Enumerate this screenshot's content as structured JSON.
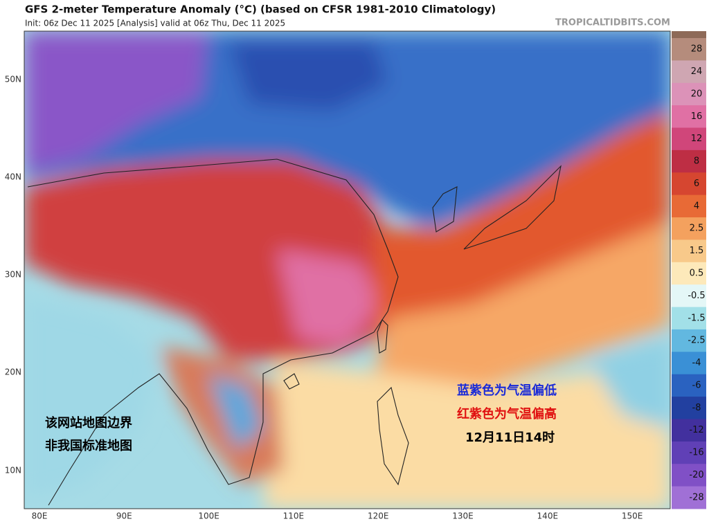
{
  "header": {
    "title": "GFS 2-meter Temperature Anomaly (°C) (based on CFSR 1981-2010 Climatology)",
    "subtitle": "Init: 06z Dec 11 2025   [Analysis]   valid at 06z Thu, Dec 11 2025",
    "site": "TROPICALTIDBITS.COM"
  },
  "map": {
    "lat_labels": [
      "50N",
      "40N",
      "30N",
      "20N",
      "10N"
    ],
    "lon_labels": [
      "80E",
      "90E",
      "100E",
      "110E",
      "120E",
      "130E",
      "140E",
      "150E"
    ]
  },
  "colorbar": [
    {
      "label": "28",
      "color": "#b58c7c"
    },
    {
      "label": "24",
      "color": "#cfa6b2"
    },
    {
      "label": "20",
      "color": "#dc92b8"
    },
    {
      "label": "16",
      "color": "#e070a4"
    },
    {
      "label": "12",
      "color": "#d0467a"
    },
    {
      "label": "8",
      "color": "#be2e44"
    },
    {
      "label": "6",
      "color": "#d64630"
    },
    {
      "label": "4",
      "color": "#e86a36"
    },
    {
      "label": "2.5",
      "color": "#f4a15e"
    },
    {
      "label": "1.5",
      "color": "#f8c98a"
    },
    {
      "label": "0.5",
      "color": "#fde9ba"
    },
    {
      "label": "-0.5",
      "color": "#e4f7f7"
    },
    {
      "label": "-1.5",
      "color": "#a2e0e8"
    },
    {
      "label": "-2.5",
      "color": "#62b8e0"
    },
    {
      "label": "-4",
      "color": "#3a90d6"
    },
    {
      "label": "-6",
      "color": "#2a62c0"
    },
    {
      "label": "-8",
      "color": "#2240a0"
    },
    {
      "label": "-12",
      "color": "#42309e"
    },
    {
      "label": "-16",
      "color": "#6040b6"
    },
    {
      "label": "-20",
      "color": "#8050c6"
    },
    {
      "label": "-28",
      "color": "#a070d6"
    }
  ],
  "annotations": {
    "cold": "蓝紫色为气温偏低",
    "warm": "红紫色为气温偏高",
    "time": "12月11日14时",
    "disclaimer_1": "该网站地图边界",
    "disclaimer_2": "非我国标准地图"
  }
}
